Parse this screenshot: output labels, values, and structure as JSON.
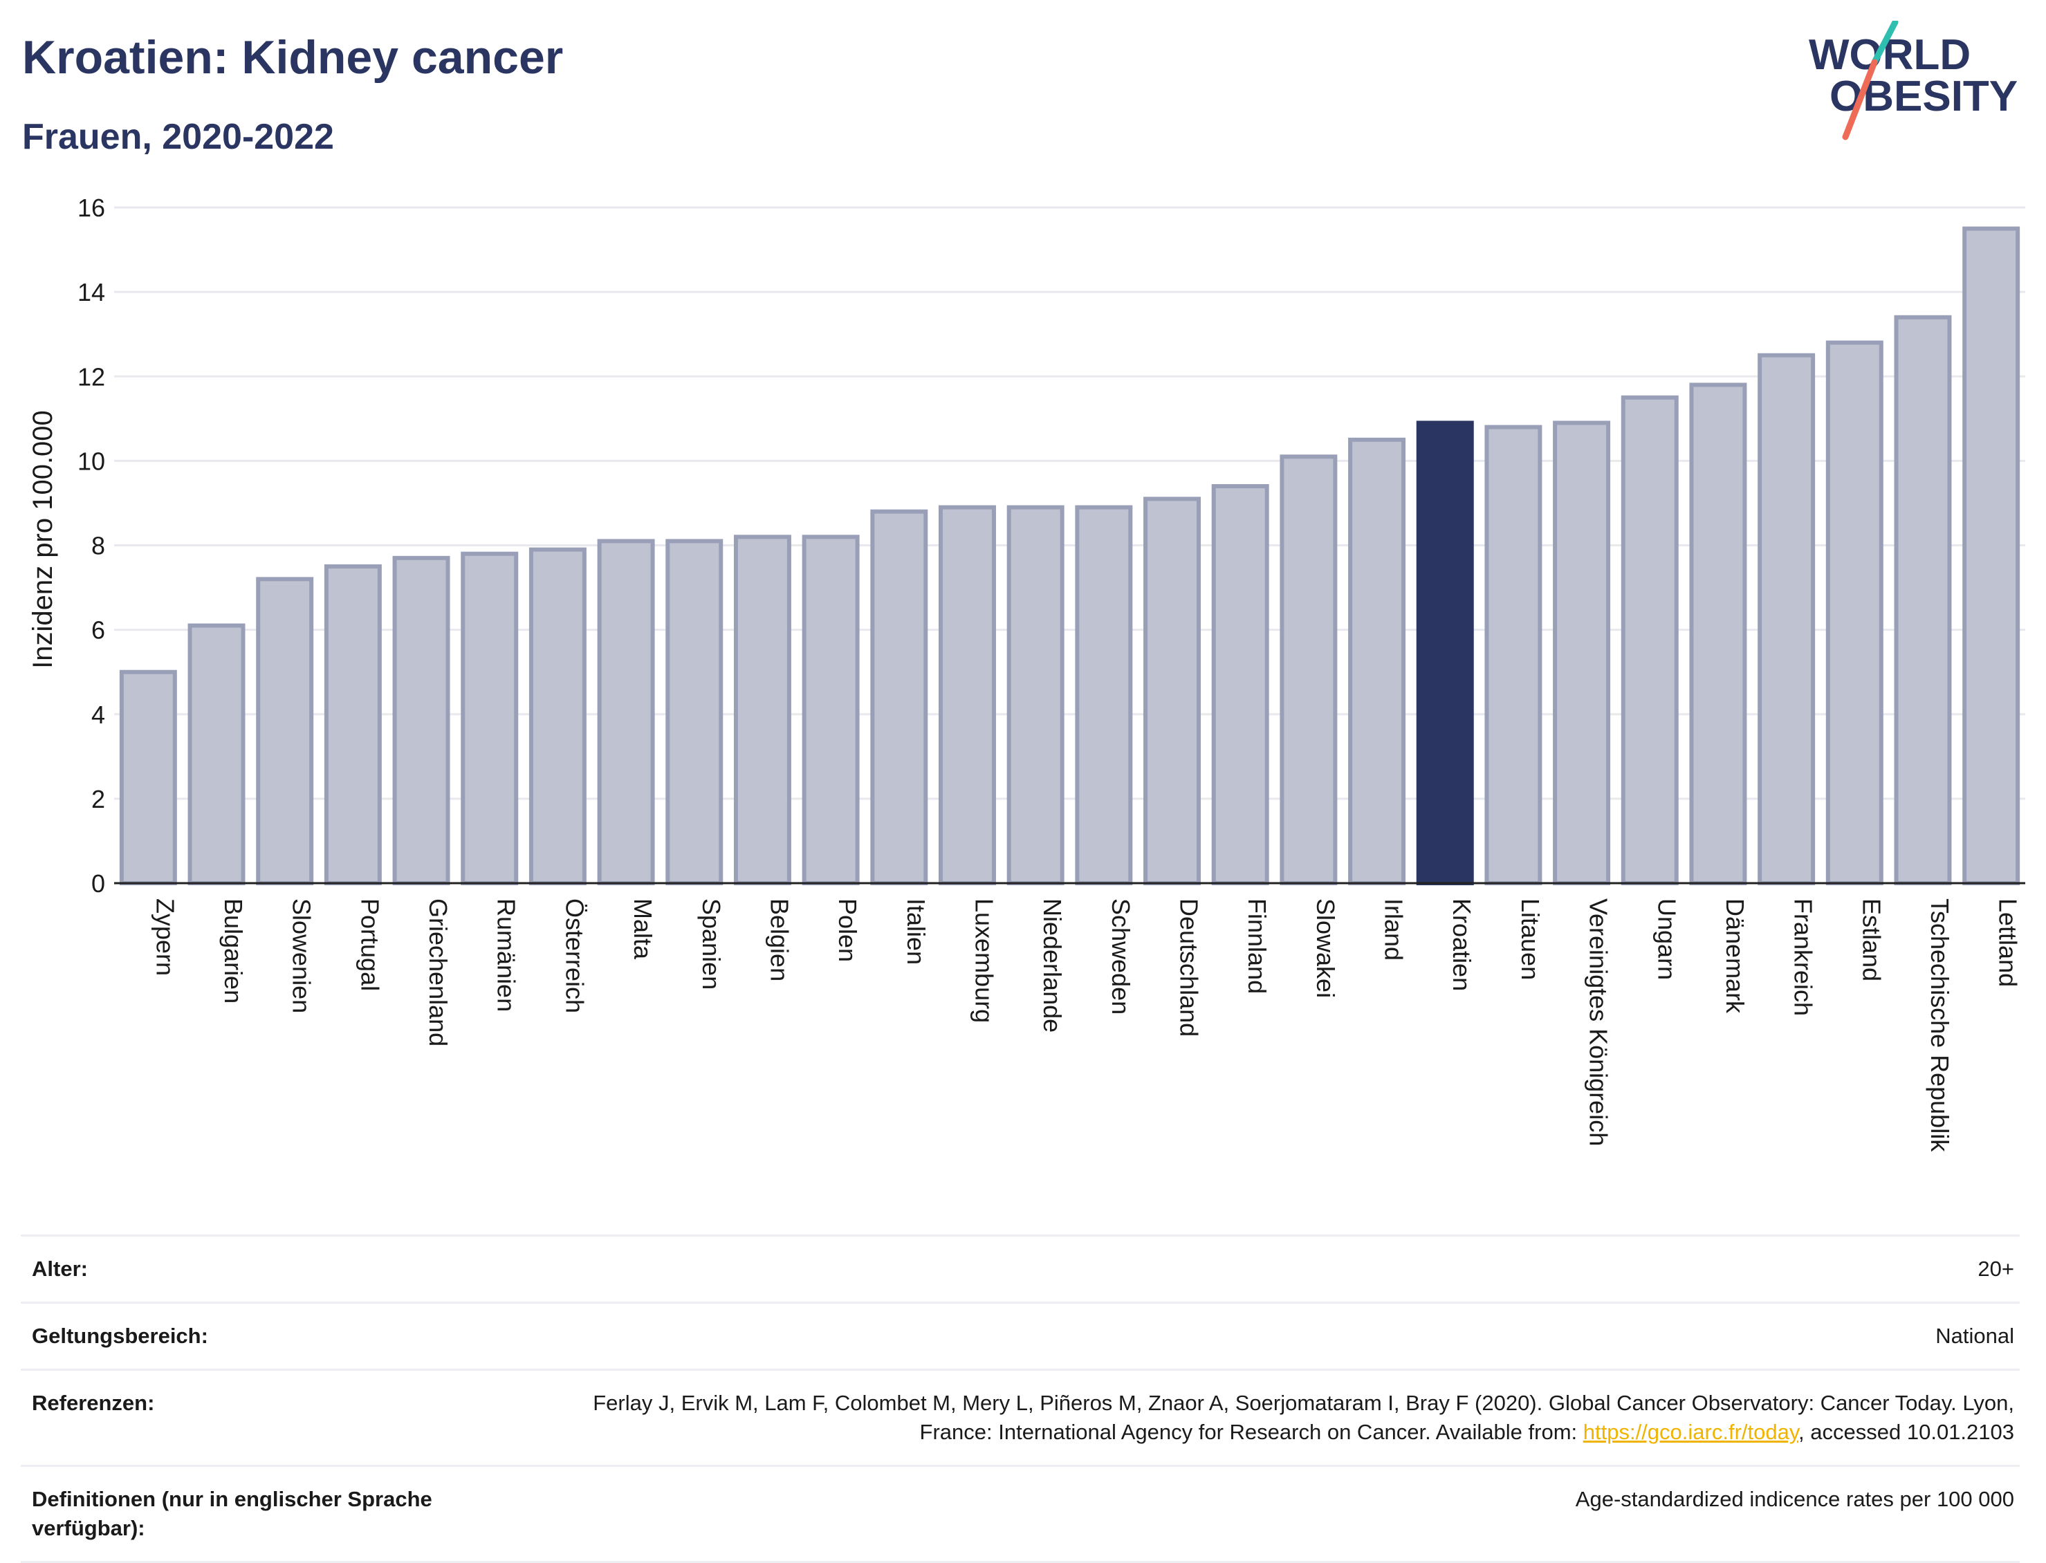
{
  "header": {
    "title": "Kroatien: Kidney cancer",
    "subtitle": "Frauen, 2020-2022",
    "logo_line1": "WORLD",
    "logo_line2": "OBESITY"
  },
  "chart_data": {
    "type": "bar",
    "title": "Kroatien: Kidney cancer",
    "subtitle": "Frauen, 2020-2022",
    "xlabel": "",
    "ylabel": "Inzidenz pro 100.000",
    "ylim": [
      0,
      16
    ],
    "yticks": [
      0,
      2,
      4,
      6,
      8,
      10,
      12,
      14,
      16
    ],
    "grid": true,
    "highlight": "Kroatien",
    "colors": {
      "bar": "#bfc2d0",
      "bar_edge": "#9a9fb8",
      "highlight": "#2a3561",
      "grid": "#e8e9ee",
      "axis": "#222222"
    },
    "categories": [
      "Zypern",
      "Bulgarien",
      "Slowenien",
      "Portugal",
      "Griechenland",
      "Rumänien",
      "Österreich",
      "Malta",
      "Spanien",
      "Belgien",
      "Polen",
      "Italien",
      "Luxemburg",
      "Niederlande",
      "Schweden",
      "Deutschland",
      "Finnland",
      "Slowakei",
      "Irland",
      "Kroatien",
      "Litauen",
      "Vereinigtes Königreich",
      "Ungarn",
      "Dänemark",
      "Frankreich",
      "Estland",
      "Tschechische Republik",
      "Lettland"
    ],
    "values": [
      5.0,
      6.1,
      7.2,
      7.5,
      7.7,
      7.8,
      7.9,
      8.1,
      8.1,
      8.2,
      8.2,
      8.8,
      8.9,
      8.9,
      8.9,
      9.1,
      9.4,
      10.1,
      10.5,
      10.9,
      10.8,
      10.9,
      11.5,
      11.8,
      12.5,
      12.8,
      13.4,
      15.5
    ]
  },
  "meta": {
    "age_label": "Alter:",
    "age_value": "20+",
    "scope_label": "Geltungsbereich:",
    "scope_value": "National",
    "ref_label": "Referenzen:",
    "ref_text_1": "Ferlay J, Ervik M, Lam F, Colombet M, Mery L, Piñeros M, Znaor A, Soerjomataram I, Bray F (2020). Global Cancer Observatory: Cancer Today. Lyon, France: International Agency for Research on Cancer. Available from: ",
    "ref_link": "https://gco.iarc.fr/today",
    "ref_text_2": ", accessed 10.01.2103",
    "def_label": "Definitionen (nur in englischer Sprache verfügbar):",
    "def_value": "Age-standardized indicence rates per 100 000"
  }
}
